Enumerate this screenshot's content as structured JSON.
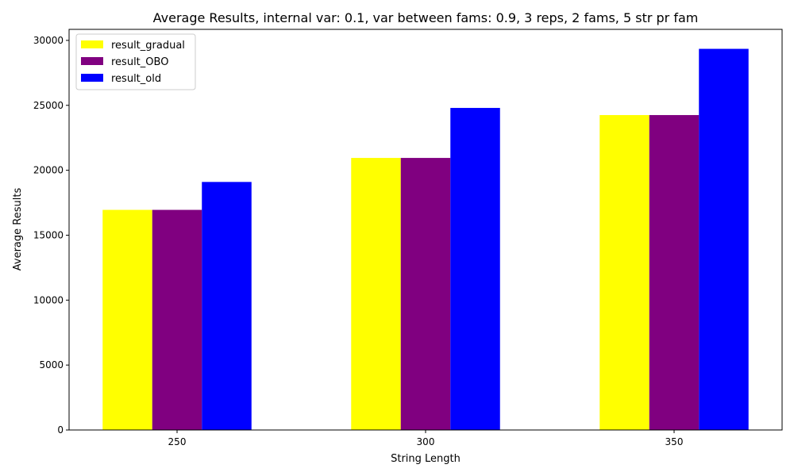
{
  "chart_data": {
    "type": "bar",
    "title": "Average Results, internal var: 0.1, var between fams: 0.9, 3 reps, 2 fams, 5 str pr fam",
    "xlabel": "String Length",
    "ylabel": "Average Results",
    "categories": [
      "250",
      "300",
      "350"
    ],
    "series": [
      {
        "name": "result_gradual",
        "color": "#ffff00",
        "values": [
          16950,
          20950,
          24250
        ]
      },
      {
        "name": "result_OBO",
        "color": "#800080",
        "values": [
          16950,
          20950,
          24250
        ]
      },
      {
        "name": "result_old",
        "color": "#0000ff",
        "values": [
          19100,
          24800,
          29350
        ]
      }
    ],
    "ylim": [
      0,
      30850
    ],
    "yticks": [
      0,
      5000,
      10000,
      15000,
      20000,
      25000,
      30000
    ],
    "legend_position": "top-left",
    "grid": false
  }
}
